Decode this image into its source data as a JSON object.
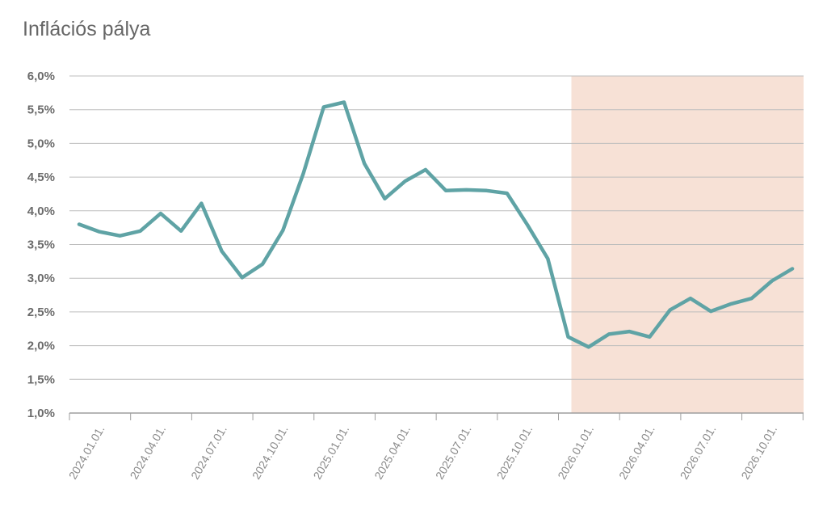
{
  "chart_data": {
    "type": "line",
    "title": "Inflációs pálya",
    "xlabel": "",
    "ylabel": "",
    "ylim": [
      1.0,
      6.0
    ],
    "y_ticks": [
      "1,0%",
      "1,5%",
      "2,0%",
      "2,5%",
      "3,0%",
      "3,5%",
      "4,0%",
      "4,5%",
      "5,0%",
      "5,5%",
      "6,0%"
    ],
    "x_tick_labels": [
      "2024.01.01.",
      "2024.04.01.",
      "2024.07.01.",
      "2024.10.01.",
      "2025.01.01.",
      "2025.04.01.",
      "2025.07.01.",
      "2025.10.01.",
      "2026.01.01.",
      "2026.04.01.",
      "2026.07.01.",
      "2026.10.01."
    ],
    "grid": true,
    "legend": "none",
    "forecast_shading": {
      "from": "2026.01.01.",
      "to": "2026.12.01.",
      "color": "#f7e1d6"
    },
    "series": [
      {
        "color": "#5fa3a5",
        "x": [
          "2024.01.01.",
          "2024.02.01.",
          "2024.03.01.",
          "2024.04.01.",
          "2024.05.01.",
          "2024.06.01.",
          "2024.07.01.",
          "2024.08.01.",
          "2024.09.01.",
          "2024.10.01.",
          "2024.11.01.",
          "2024.12.01.",
          "2025.01.01.",
          "2025.02.01.",
          "2025.03.01.",
          "2025.04.01.",
          "2025.05.01.",
          "2025.06.01.",
          "2025.07.01.",
          "2025.08.01.",
          "2025.09.01.",
          "2025.10.01.",
          "2025.11.01.",
          "2025.12.01.",
          "2026.01.01.",
          "2026.02.01.",
          "2026.03.01.",
          "2026.04.01.",
          "2026.05.01.",
          "2026.06.01.",
          "2026.07.01.",
          "2026.08.01.",
          "2026.09.01.",
          "2026.10.01.",
          "2026.11.01.",
          "2026.12.01."
        ],
        "values": [
          3.8,
          3.69,
          3.63,
          3.7,
          3.96,
          3.7,
          4.11,
          3.4,
          3.01,
          3.21,
          3.71,
          4.55,
          5.54,
          5.61,
          4.7,
          4.18,
          4.44,
          4.61,
          4.3,
          4.31,
          4.3,
          4.26,
          3.79,
          3.29,
          2.13,
          1.98,
          2.17,
          2.21,
          2.13,
          2.53,
          2.7,
          2.51,
          2.62,
          2.7,
          2.96,
          3.14
        ]
      }
    ]
  }
}
